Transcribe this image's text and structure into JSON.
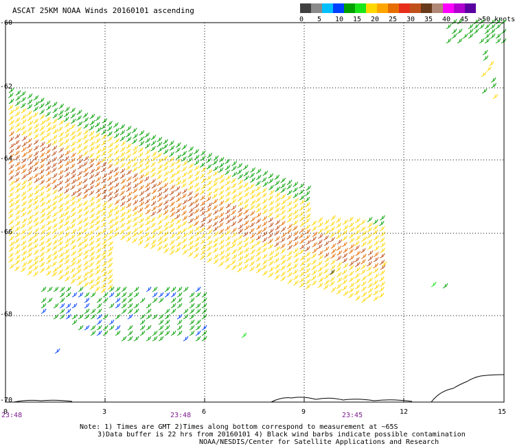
{
  "title": "ASCAT 25KM NOAA Winds 20160101 ascending",
  "colorbar": {
    "colors": [
      "#404040",
      "#8a8a8a",
      "#00bfff",
      "#0040ff",
      "#00a000",
      "#19e619",
      "#ffd700",
      "#ffa500",
      "#e66e00",
      "#e62e1a",
      "#c0501a",
      "#663a1a",
      "#b08878",
      "#ff00ff",
      "#b000d0",
      "#5a00a0"
    ],
    "labels": [
      "0",
      "5",
      "10",
      "15",
      "20",
      "25",
      "30",
      "35",
      "40",
      "45",
      ">50 knots"
    ]
  },
  "y_ticks": [
    "-60",
    "-62",
    "-64",
    "-66",
    "-68",
    "-70"
  ],
  "x_ticks": [
    "0",
    "3",
    "6",
    "9",
    "12",
    "15"
  ],
  "time_labels": [
    "23:48",
    "23:48",
    "23:45"
  ],
  "notes": [
    "Note: 1) Times are GMT 2)Times along bottom correspond to measurement at ~65S",
    "3)Data buffer is 22 hrs from 20160101 4) Black wind barbs indicate possible contamination",
    "NOAA/NESDIS/Center for Satellite Applications and Research"
  ],
  "map": {
    "lon_range": [
      0,
      15
    ],
    "lat_range": [
      -70,
      -60
    ],
    "grid": true
  }
}
